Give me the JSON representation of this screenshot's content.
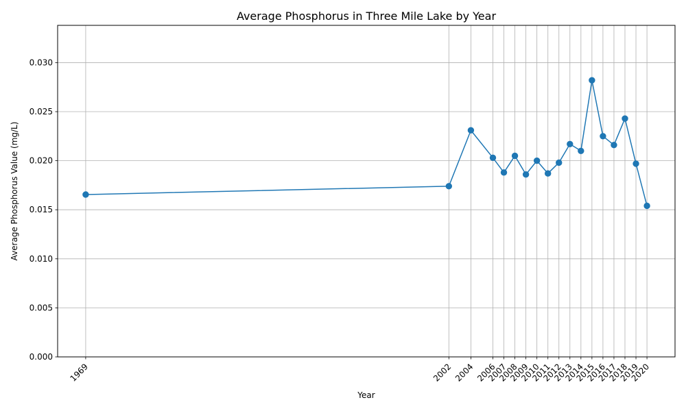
{
  "chart_data": {
    "type": "line",
    "title": "Average Phosphorus in Three Mile Lake by Year",
    "xlabel": "Year",
    "ylabel": "Average Phosphorus Value (mg/L)",
    "x": [
      1969,
      2002,
      2004,
      2006,
      2007,
      2008,
      2009,
      2010,
      2011,
      2012,
      2013,
      2014,
      2015,
      2016,
      2017,
      2018,
      2019,
      2020
    ],
    "x_tick_labels": [
      "1969",
      "2002",
      "2004",
      "2006",
      "2007",
      "2008",
      "2009",
      "2010",
      "2011",
      "2012",
      "2013",
      "2014",
      "2015",
      "2016",
      "2017",
      "2018",
      "2019",
      "2020"
    ],
    "y": [
      0.01655,
      0.0174,
      0.0231,
      0.0203,
      0.0188,
      0.0205,
      0.0186,
      0.02,
      0.0187,
      0.0198,
      0.0217,
      0.021,
      0.0282,
      0.0225,
      0.0216,
      0.0243,
      0.0197,
      0.0154
    ],
    "y_ticks": [
      0.0,
      0.005,
      0.01,
      0.015,
      0.02,
      0.025,
      0.03
    ],
    "y_tick_labels": [
      "0.000",
      "0.005",
      "0.010",
      "0.015",
      "0.020",
      "0.025",
      "0.030"
    ],
    "xlim": [
      1966.45,
      2022.55
    ],
    "ylim": [
      0,
      0.0338
    ],
    "grid": true,
    "color": "#1f77b4",
    "marker": "circle"
  }
}
